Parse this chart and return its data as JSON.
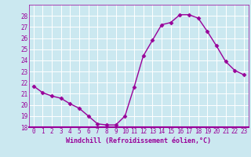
{
  "x": [
    0,
    1,
    2,
    3,
    4,
    5,
    6,
    7,
    8,
    9,
    10,
    11,
    12,
    13,
    14,
    15,
    16,
    17,
    18,
    19,
    20,
    21,
    22,
    23
  ],
  "y": [
    21.7,
    21.1,
    20.8,
    20.6,
    20.1,
    19.7,
    19.0,
    18.3,
    18.2,
    18.2,
    19.0,
    21.6,
    24.4,
    25.8,
    27.2,
    27.4,
    28.1,
    28.1,
    27.8,
    26.6,
    25.3,
    23.9,
    23.1,
    22.7
  ],
  "line_color": "#990099",
  "marker": "D",
  "markersize": 2.5,
  "linewidth": 1.0,
  "bg_color": "#cbe8f0",
  "grid_color": "#ffffff",
  "xlabel": "Windchill (Refroidissement éolien,°C)",
  "xlabel_color": "#990099",
  "tick_color": "#990099",
  "label_color": "#990099",
  "ylim": [
    18,
    29
  ],
  "xlim_min": -0.5,
  "xlim_max": 23.5,
  "yticks": [
    18,
    19,
    20,
    21,
    22,
    23,
    24,
    25,
    26,
    27,
    28
  ],
  "xticks": [
    0,
    1,
    2,
    3,
    4,
    5,
    6,
    7,
    8,
    9,
    10,
    11,
    12,
    13,
    14,
    15,
    16,
    17,
    18,
    19,
    20,
    21,
    22,
    23
  ],
  "tick_fontsize": 5.5,
  "xlabel_fontsize": 6.0
}
